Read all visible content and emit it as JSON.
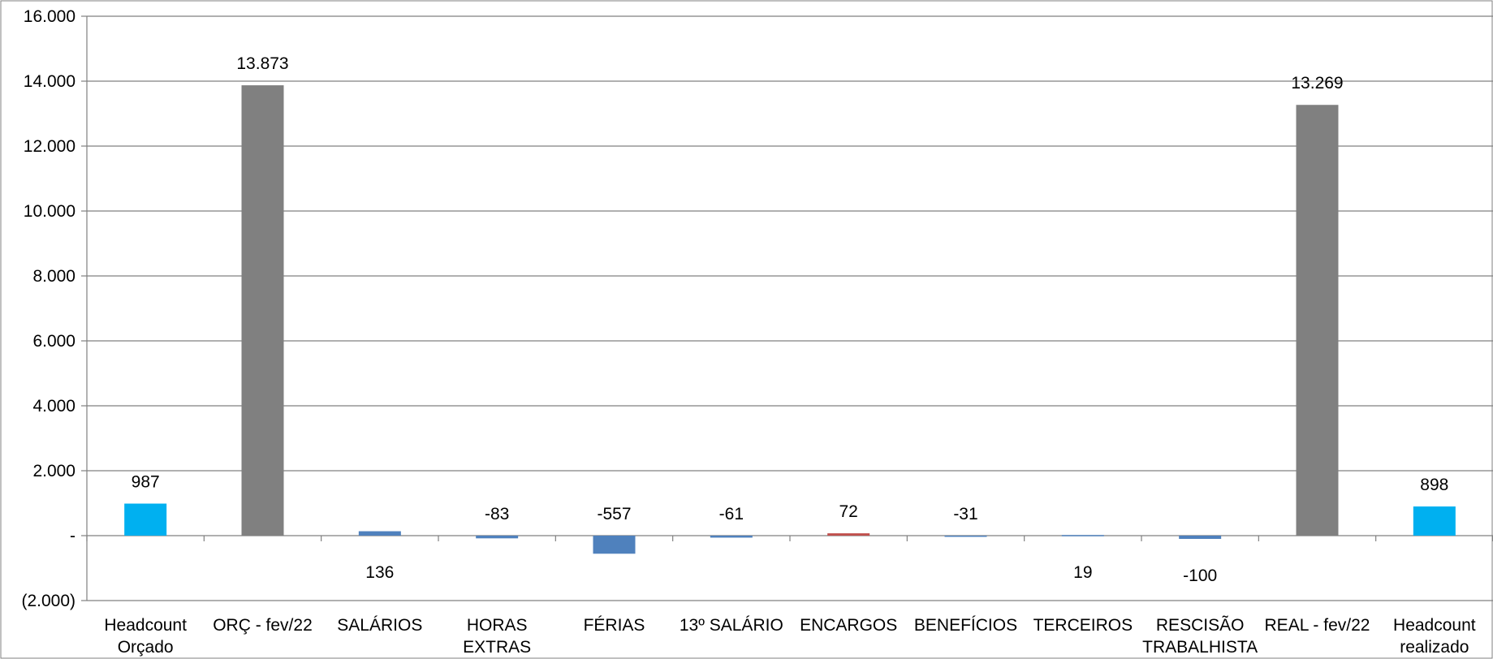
{
  "chart_data": {
    "type": "bar",
    "title": "",
    "xlabel": "",
    "ylabel": "",
    "ylim": [
      -2000,
      16000
    ],
    "grid": true,
    "legend": "none",
    "y_ticks": [
      {
        "value": 16000,
        "label": "16.000"
      },
      {
        "value": 14000,
        "label": "14.000"
      },
      {
        "value": 12000,
        "label": "12.000"
      },
      {
        "value": 10000,
        "label": "10.000"
      },
      {
        "value": 8000,
        "label": "8.000"
      },
      {
        "value": 6000,
        "label": "6.000"
      },
      {
        "value": 4000,
        "label": "4.000"
      },
      {
        "value": 2000,
        "label": "2.000"
      },
      {
        "value": 0,
        "label": "-"
      },
      {
        "value": -2000,
        "label": "(2.000)"
      }
    ],
    "categories": [
      [
        "Headcount",
        "Orçado"
      ],
      [
        "ORÇ - fev/22"
      ],
      [
        "SALÁRIOS"
      ],
      [
        "HORAS",
        "EXTRAS"
      ],
      [
        "FÉRIAS"
      ],
      [
        "13º SALÁRIO"
      ],
      [
        "ENCARGOS"
      ],
      [
        "BENEFÍCIOS"
      ],
      [
        "TERCEIROS"
      ],
      [
        "RESCISÃO",
        "TRABALHISTA"
      ],
      [
        "REAL - fev/22"
      ],
      [
        "Headcount",
        "realizado"
      ]
    ],
    "values": [
      987,
      13873,
      136,
      -83,
      -557,
      -61,
      72,
      -31,
      19,
      -100,
      13269,
      898
    ],
    "data_labels": [
      "987",
      "13.873",
      "136",
      "-83",
      "-557",
      "-61",
      "72",
      "-31",
      "19",
      "-100",
      "13.269",
      "898"
    ],
    "label_positions": [
      "above",
      "above",
      "below",
      "above",
      "above",
      "above",
      "above",
      "above",
      "below",
      "below",
      "above",
      "above"
    ],
    "colors": [
      "#00B0F0",
      "#808080",
      "#4F81BD",
      "#4F81BD",
      "#4F81BD",
      "#4F81BD",
      "#C0504D",
      "#4F81BD",
      "#4F81BD",
      "#4F81BD",
      "#808080",
      "#00B0F0"
    ],
    "gridline_color": "#808080",
    "axis_color": "#808080"
  }
}
